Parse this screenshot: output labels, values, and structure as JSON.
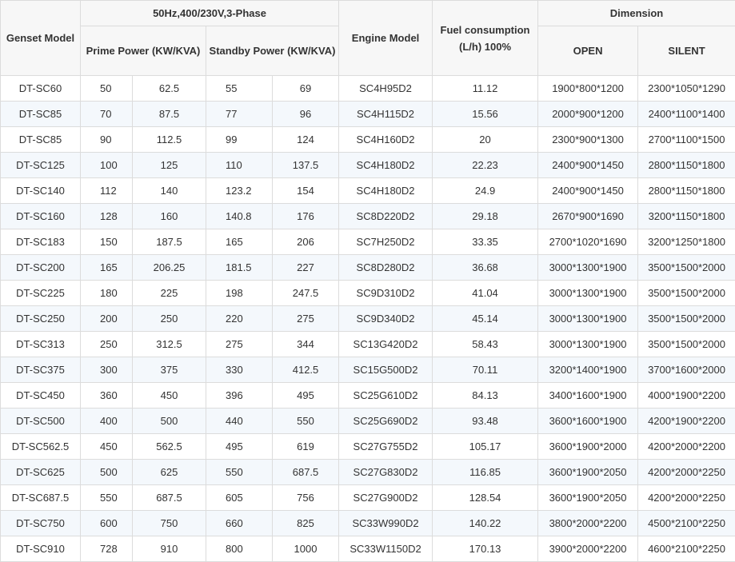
{
  "headers": {
    "genset_model": "Genset Model",
    "phase_group": "50Hz,400/230V,3-Phase",
    "prime_power": "Prime Power (KW/KVA)",
    "standby_power": "Standby Power (KW/KVA)",
    "engine_model": "Engine Model",
    "fuel": "Fuel consumption (L/h) 100%",
    "dimension": "Dimension",
    "open": "OPEN",
    "silent": "SILENT"
  },
  "rows": [
    [
      "DT-SC60",
      "50",
      "62.5",
      "55",
      "69",
      "SC4H95D2",
      "11.12",
      "1900*800*1200",
      "2300*1050*1290"
    ],
    [
      "DT-SC85",
      "70",
      "87.5",
      "77",
      "96",
      "SC4H115D2",
      "15.56",
      "2000*900*1200",
      "2400*1100*1400"
    ],
    [
      "DT-SC85",
      "90",
      "112.5",
      "99",
      "124",
      "SC4H160D2",
      "20",
      "2300*900*1300",
      "2700*1100*1500"
    ],
    [
      "DT-SC125",
      "100",
      "125",
      "110",
      "137.5",
      "SC4H180D2",
      "22.23",
      "2400*900*1450",
      "2800*1150*1800"
    ],
    [
      "DT-SC140",
      "112",
      "140",
      "123.2",
      "154",
      "SC4H180D2",
      "24.9",
      "2400*900*1450",
      "2800*1150*1800"
    ],
    [
      "DT-SC160",
      "128",
      "160",
      "140.8",
      "176",
      "SC8D220D2",
      "29.18",
      "2670*900*1690",
      "3200*1150*1800"
    ],
    [
      "DT-SC183",
      "150",
      "187.5",
      "165",
      "206",
      "SC7H250D2",
      "33.35",
      "2700*1020*1690",
      "3200*1250*1800"
    ],
    [
      "DT-SC200",
      "165",
      "206.25",
      "181.5",
      "227",
      "SC8D280D2",
      "36.68",
      "3000*1300*1900",
      "3500*1500*2000"
    ],
    [
      "DT-SC225",
      "180",
      "225",
      "198",
      "247.5",
      "SC9D310D2",
      "41.04",
      "3000*1300*1900",
      "3500*1500*2000"
    ],
    [
      "DT-SC250",
      "200",
      "250",
      "220",
      "275",
      "SC9D340D2",
      "45.14",
      "3000*1300*1900",
      "3500*1500*2000"
    ],
    [
      "DT-SC313",
      "250",
      "312.5",
      "275",
      "344",
      "SC13G420D2",
      "58.43",
      "3000*1300*1900",
      "3500*1500*2000"
    ],
    [
      "DT-SC375",
      "300",
      "375",
      "330",
      "412.5",
      "SC15G500D2",
      "70.11",
      "3200*1400*1900",
      "3700*1600*2000"
    ],
    [
      "DT-SC450",
      "360",
      "450",
      "396",
      "495",
      "SC25G610D2",
      "84.13",
      "3400*1600*1900",
      "4000*1900*2200"
    ],
    [
      "DT-SC500",
      "400",
      "500",
      "440",
      "550",
      "SC25G690D2",
      "93.48",
      "3600*1600*1900",
      "4200*1900*2200"
    ],
    [
      "DT-SC562.5",
      "450",
      "562.5",
      "495",
      "619",
      "SC27G755D2",
      "105.17",
      "3600*1900*2000",
      "4200*2000*2200"
    ],
    [
      "DT-SC625",
      "500",
      "625",
      "550",
      "687.5",
      "SC27G830D2",
      "116.85",
      "3600*1900*2050",
      "4200*2000*2250"
    ],
    [
      "DT-SC687.5",
      "550",
      "687.5",
      "605",
      "756",
      "SC27G900D2",
      "128.54",
      "3600*1900*2050",
      "4200*2000*2250"
    ],
    [
      "DT-SC750",
      "600",
      "750",
      "660",
      "825",
      "SC33W990D2",
      "140.22",
      "3800*2000*2200",
      "4500*2100*2250"
    ],
    [
      "DT-SC910",
      "728",
      "910",
      "800",
      "1000",
      "SC33W1150D2",
      "170.13",
      "3900*2000*2200",
      "4600*2100*2250"
    ]
  ]
}
